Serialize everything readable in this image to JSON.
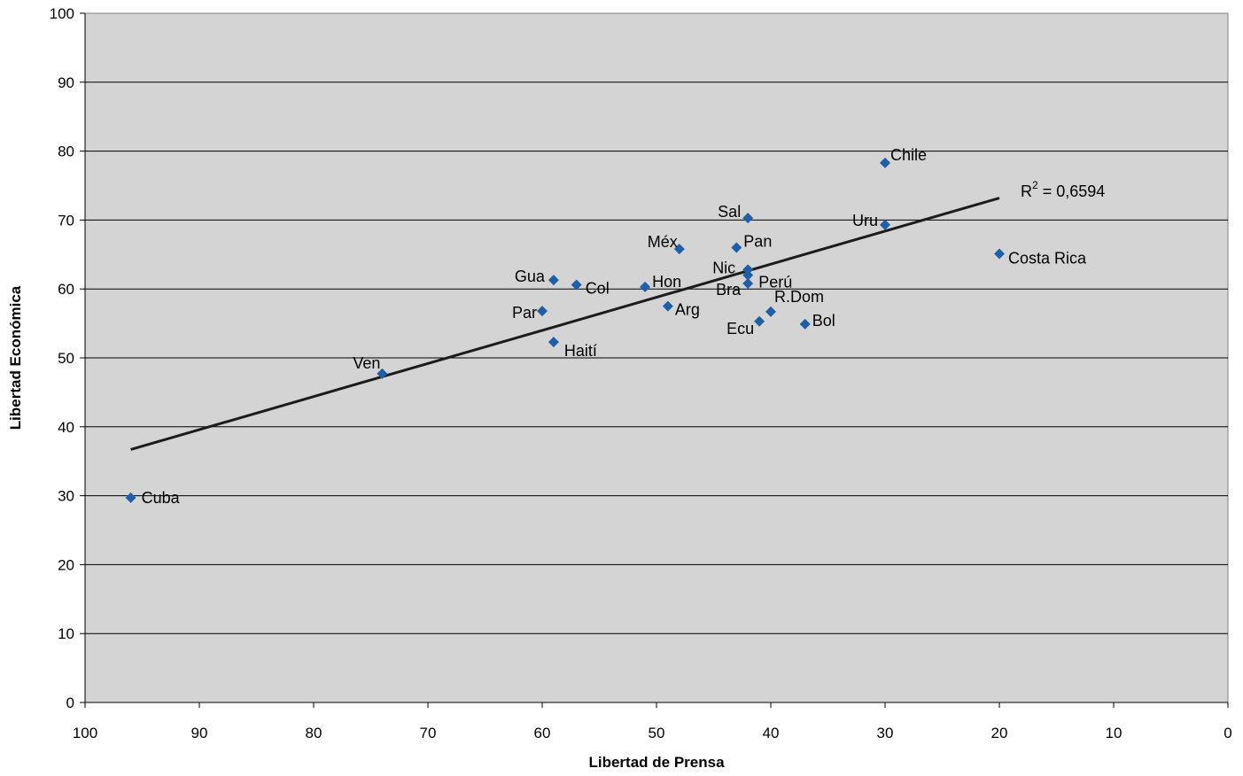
{
  "chart_data": {
    "type": "scatter",
    "title": "",
    "xlabel": "Libertad de Prensa",
    "ylabel": "Libertad Económica",
    "xlim": [
      100,
      0
    ],
    "x_reversed": true,
    "ylim": [
      0,
      100
    ],
    "x_ticks": [
      "100",
      "90",
      "80",
      "70",
      "60",
      "50",
      "40",
      "30",
      "20",
      "10",
      "0"
    ],
    "y_ticks": [
      "0",
      "10",
      "20",
      "30",
      "40",
      "50",
      "60",
      "70",
      "80",
      "90",
      "100"
    ],
    "grid": "horizontal",
    "plot_background": "#d4d4d4",
    "point_color": "#1f5fa8",
    "trendline_color": "#1c1c1c",
    "points": [
      {
        "label": "Cuba",
        "x": 96,
        "y": 29.7
      },
      {
        "label": "Ven",
        "x": 74,
        "y": 47.7
      },
      {
        "label": "Par",
        "x": 60,
        "y": 56.8
      },
      {
        "label": "Haití",
        "x": 59,
        "y": 52.3
      },
      {
        "label": "Gua",
        "x": 59,
        "y": 61.3
      },
      {
        "label": "Col",
        "x": 57,
        "y": 60.6
      },
      {
        "label": "Hon",
        "x": 51,
        "y": 60.3
      },
      {
        "label": "Arg",
        "x": 49,
        "y": 57.5
      },
      {
        "label": "Méx",
        "x": 48,
        "y": 65.8
      },
      {
        "label": "Pan",
        "x": 43,
        "y": 66.0
      },
      {
        "label": "Sal",
        "x": 42,
        "y": 70.3
      },
      {
        "label": "Nic",
        "x": 42,
        "y": 62.8
      },
      {
        "label": "Perú",
        "x": 42,
        "y": 62.0
      },
      {
        "label": "Bra",
        "x": 42,
        "y": 60.8
      },
      {
        "label": "Ecu",
        "x": 41,
        "y": 55.3
      },
      {
        "label": "R.Dom",
        "x": 40,
        "y": 56.7
      },
      {
        "label": "Bol",
        "x": 37,
        "y": 54.9
      },
      {
        "label": "Uru",
        "x": 30,
        "y": 69.3
      },
      {
        "label": "Chile",
        "x": 30,
        "y": 78.3
      },
      {
        "label": "Costa Rica",
        "x": 20,
        "y": 65.1
      }
    ],
    "trendline": {
      "x": [
        96,
        20
      ],
      "y": [
        36.7,
        73.2
      ]
    },
    "r2_label": {
      "prefix": "R",
      "superscript": "2",
      "text": " = 0,6594"
    }
  }
}
